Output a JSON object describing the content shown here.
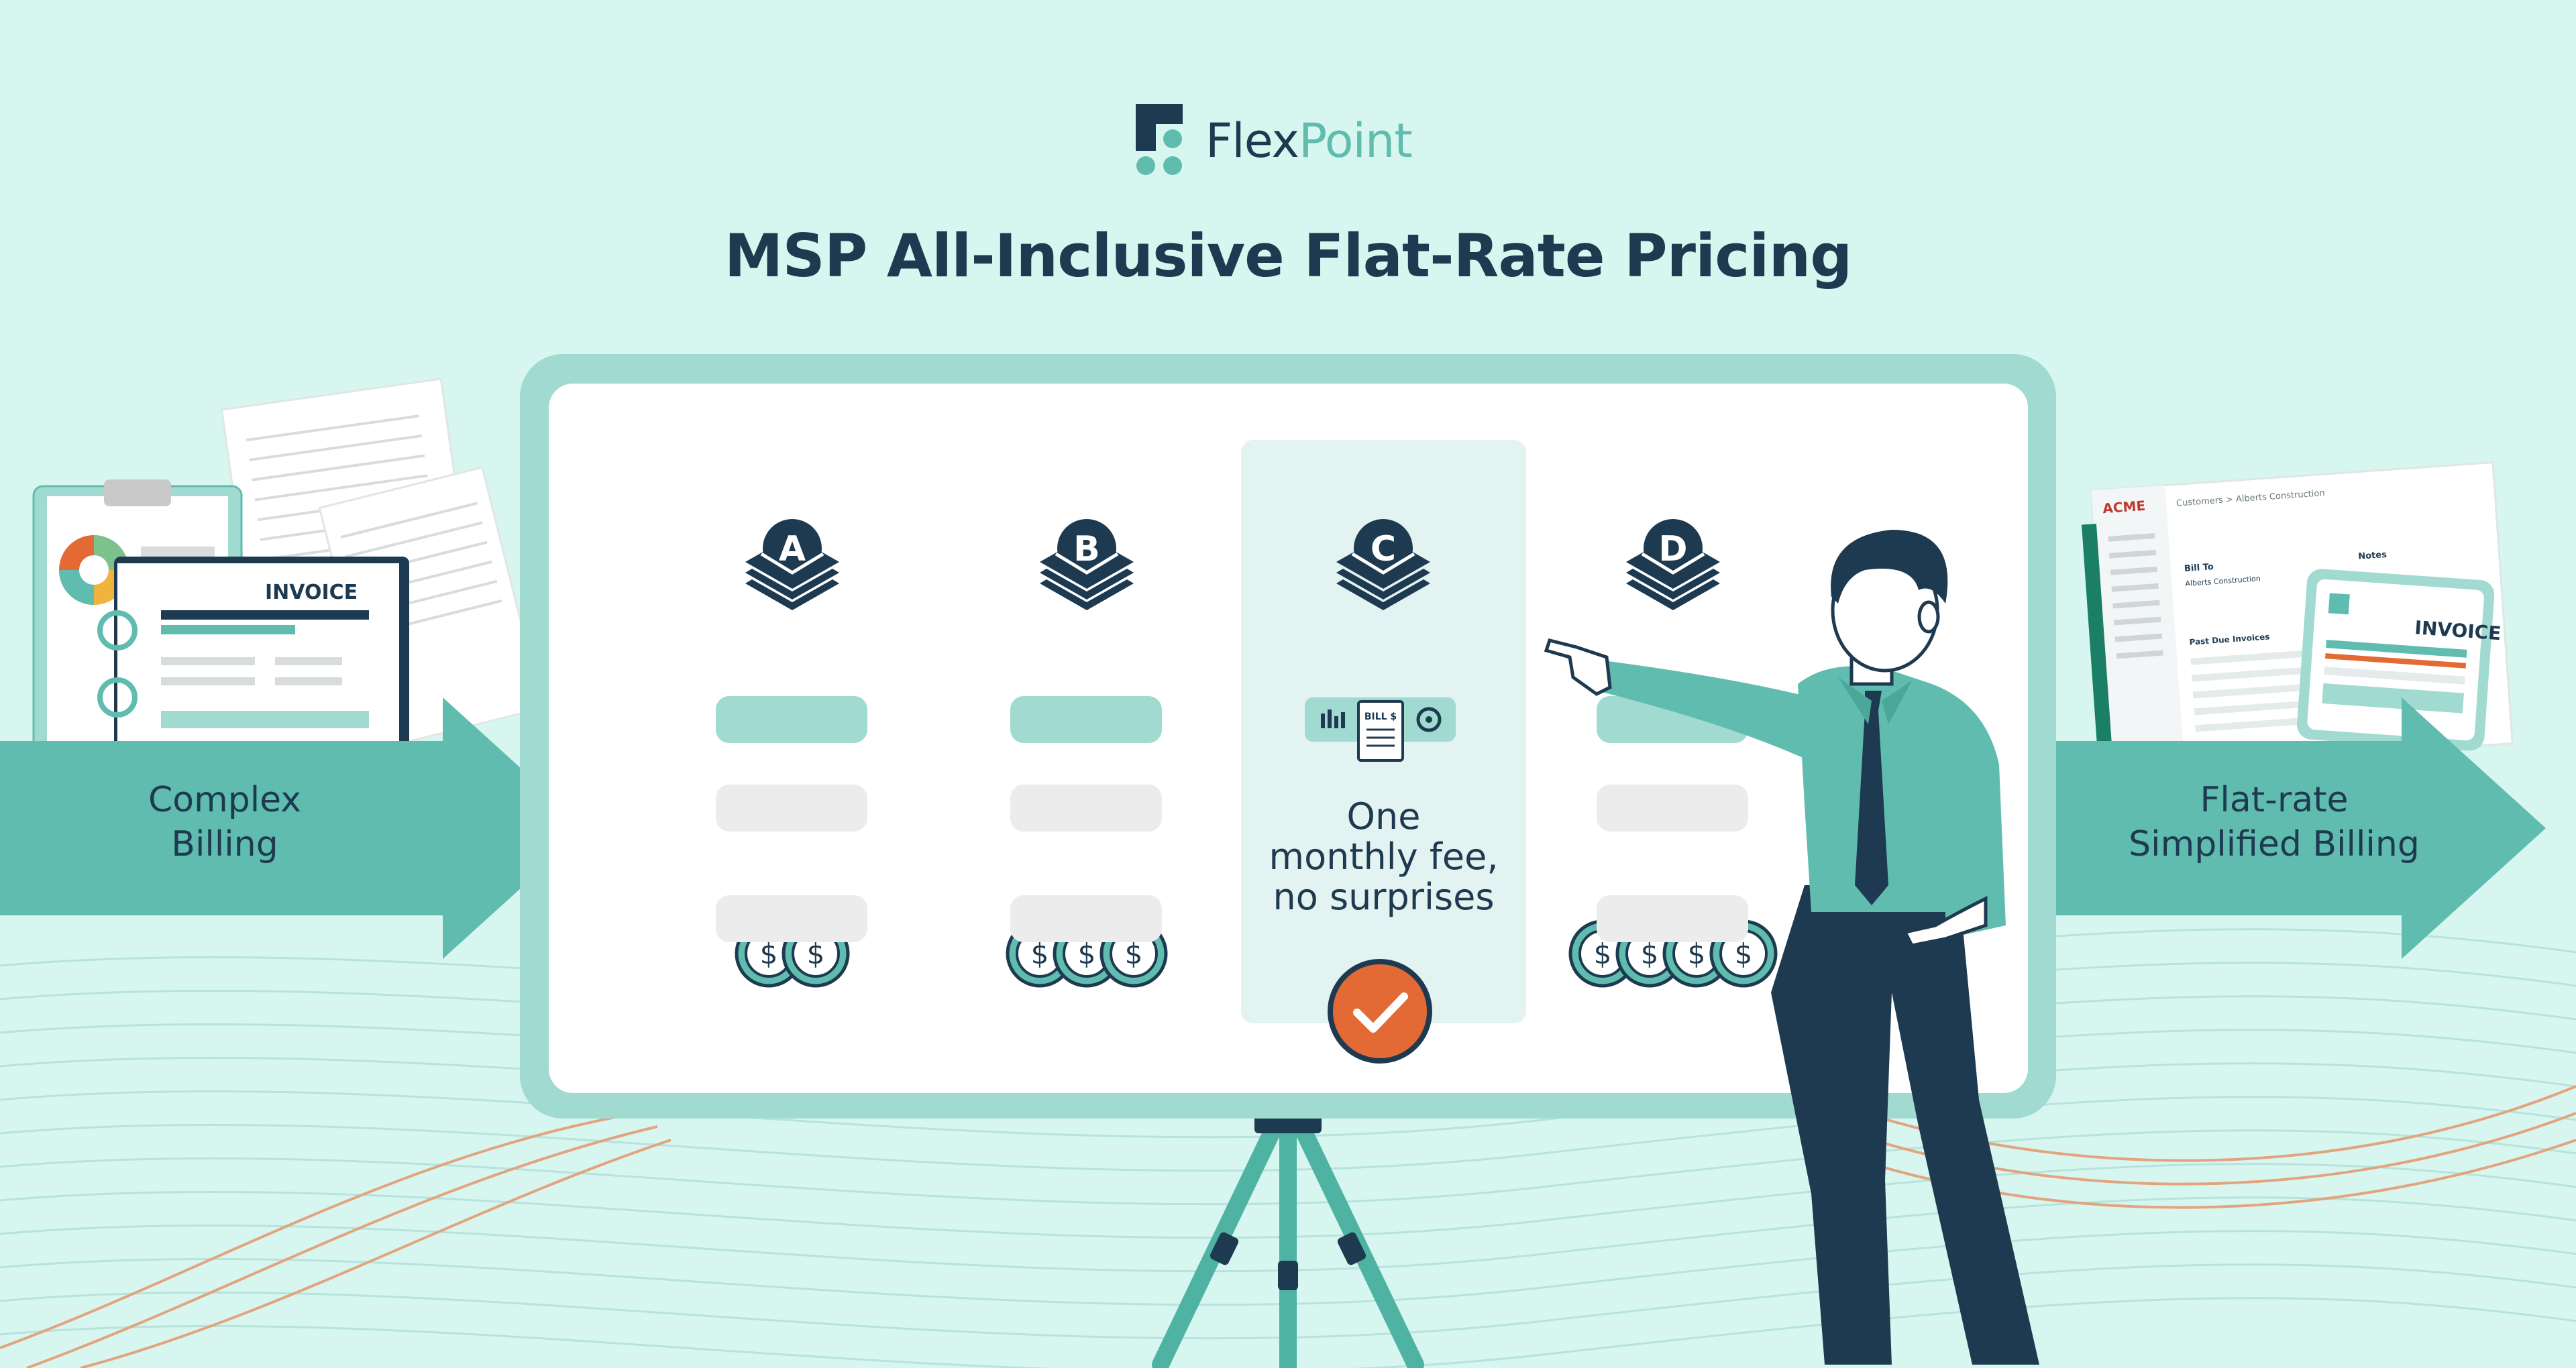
{
  "brand": {
    "name_part1": "Flex",
    "name_part2": "Point"
  },
  "title": "MSP All-Inclusive Flat-Rate Pricing",
  "left_arrow": {
    "line1": "Complex",
    "line2": "Billing"
  },
  "right_arrow": {
    "line1": "Flat-rate",
    "line2": "Simplified Billing"
  },
  "left_doc": {
    "invoice_label": "INVOICE"
  },
  "right_doc": {
    "acme_label": "ACME",
    "breadcrumb": "Customers > Alberts Construction",
    "bill_to": "Bill To",
    "customer": "Alberts Construction",
    "notes": "Notes",
    "past_due": "Past Due Invoices",
    "invoice_label": "INVOICE"
  },
  "plans": [
    {
      "letter": "A",
      "coins": 2
    },
    {
      "letter": "B",
      "coins": 3
    },
    {
      "letter": "C",
      "coins": 0
    },
    {
      "letter": "D",
      "coins": 4
    }
  ],
  "highlight": {
    "bill_label": "BILL $",
    "line1": "One",
    "line2": "monthly fee,",
    "line3": "no surprises"
  },
  "coin_symbol": "$",
  "colors": {
    "navy": "#1e3a50",
    "teal": "#5fbcae",
    "light_teal": "#a0dad1",
    "background": "#d8f6f0",
    "orange": "#e36a34"
  }
}
